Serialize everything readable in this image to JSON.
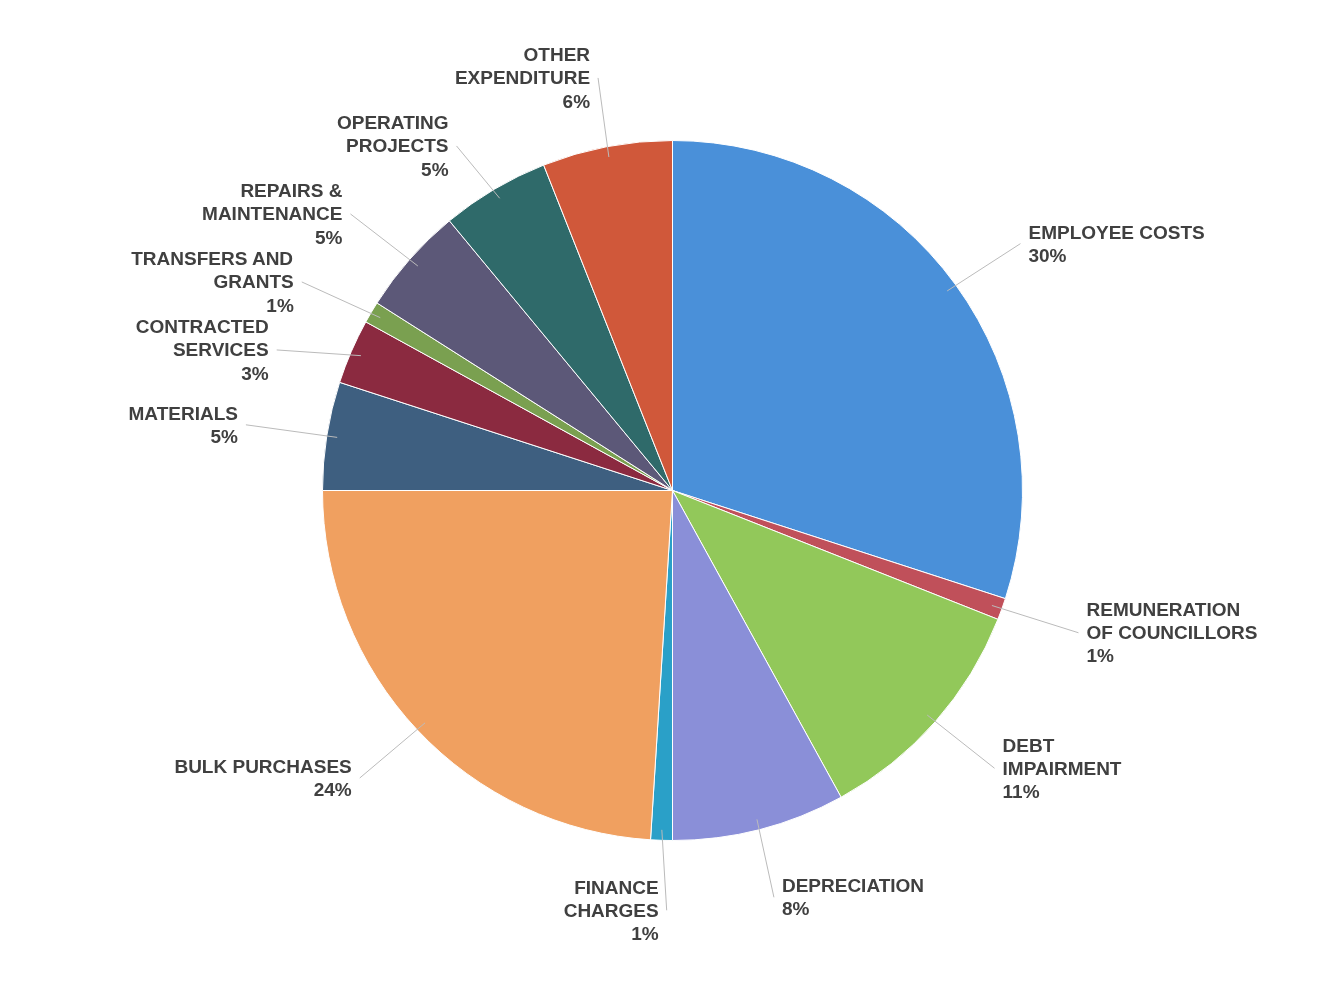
{
  "chart_data": {
    "type": "pie",
    "categories": [
      "EMPLOYEE COSTS",
      "REMUNERATION OF COUNCILLORS",
      "DEBT IMPAIRMENT",
      "DEPRECIATION",
      "FINANCE CHARGES",
      "BULK PURCHASES",
      "MATERIALS",
      "CONTRACTED SERVICES",
      "TRANSFERS AND GRANTS",
      "REPAIRS & MAINTENANCE",
      "OPERATING PROJECTS",
      "OTHER EXPENDITURE"
    ],
    "values": [
      30,
      1,
      11,
      8,
      1,
      24,
      5,
      3,
      1,
      5,
      5,
      6
    ],
    "value_labels": [
      "30%",
      "1%",
      "11%",
      "8%",
      "1%",
      "24%",
      "5%",
      "3%",
      "1%",
      "5%",
      "5%",
      "6%"
    ],
    "colors": [
      "#4a90d9",
      "#c0505a",
      "#92c85a",
      "#8a8fd8",
      "#2aa0c8",
      "#f0a060",
      "#3e5f80",
      "#8b2a40",
      "#7aa050",
      "#5c5878",
      "#2f6a6a",
      "#d0583a"
    ]
  }
}
